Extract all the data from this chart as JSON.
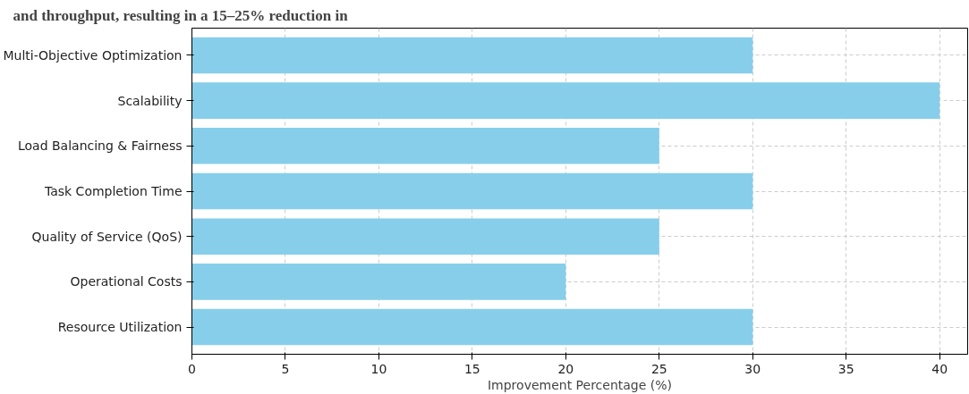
{
  "chart_data": {
    "type": "bar",
    "orientation": "horizontal",
    "annotations": [
      "and throughput, resulting in a 15–25% reduction in"
    ],
    "categories": [
      "Multi-Objective Optimization",
      "Scalability",
      "Load Balancing & Fairness",
      "Task Completion Time",
      "Quality of Service (QoS)",
      "Operational Costs",
      "Resource Utilization"
    ],
    "values": [
      30,
      40,
      25,
      30,
      25,
      20,
      30
    ],
    "color": "#87ceeb",
    "xlabel": "Improvement Percentage (%)",
    "xlim": [
      0,
      41.5
    ],
    "xticks": [
      0,
      5,
      10,
      15,
      20,
      25,
      30,
      35,
      40
    ],
    "grid": true
  }
}
